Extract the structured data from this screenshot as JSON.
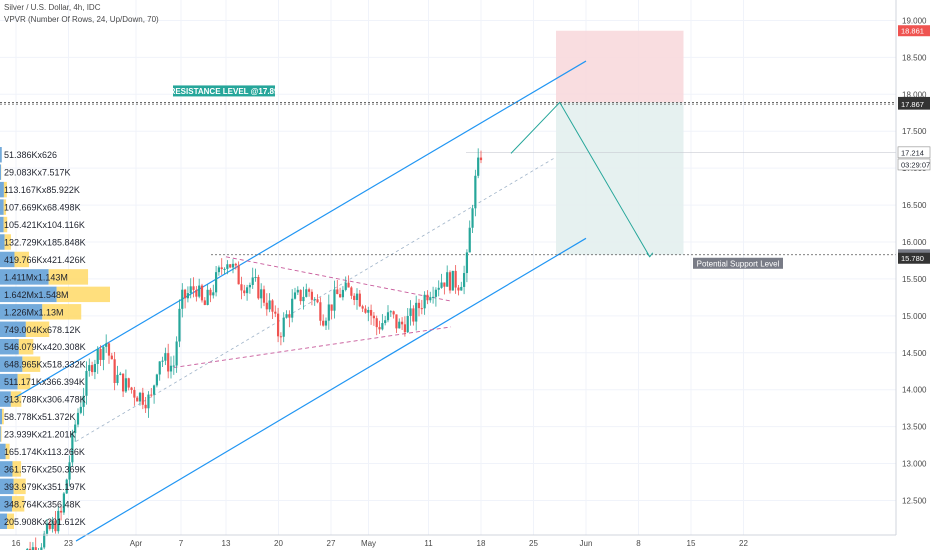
{
  "header": {
    "title": "Silver / U.S. Dollar, 4h, IDC",
    "indicator": "VPVR (Number Of Rows, 24, Up/Down, 70)"
  },
  "colors": {
    "up": "#26a69a",
    "down": "#ef5350",
    "channel": "#2196f3",
    "vp_up": "#5b9bd5",
    "vp_down": "#ffd966",
    "vp_bg_up": "#dbe9f7",
    "vp_bg_down": "#fdf0c4",
    "stop_zone": "#f8d7da",
    "target_zone": "#e3f0ee",
    "triangle": "#c85a9b",
    "projection": "#26a69a",
    "current_price_bg": "#ffffff",
    "red_label": "#ef5350",
    "dark_label": "#333333",
    "grey_label": "#787b86",
    "resistance_label": "#26a69a"
  },
  "chart_data": {
    "type": "candlestick",
    "title": "Silver / U.S. Dollar, 4h, IDC",
    "y_axis": {
      "ylim": [
        12.1,
        19.25
      ],
      "ticks": [
        12.5,
        13.0,
        13.5,
        14.0,
        14.5,
        15.0,
        15.5,
        16.0,
        16.5,
        17.0,
        17.5,
        18.0,
        18.5,
        19.0
      ],
      "tick_labels": [
        "12.500",
        "13.000",
        "13.500",
        "14.000",
        "14.500",
        "15.000",
        "15.500",
        "16.000",
        "16.500",
        "17.000",
        "17.500",
        "18.000",
        "18.500",
        "19.000"
      ],
      "price_labels": [
        {
          "value": 18.861,
          "text": "18.861",
          "style": "red"
        },
        {
          "value": 17.89,
          "text": "17.890",
          "style": "dark"
        },
        {
          "value": 17.867,
          "text": "17.867",
          "style": "dark"
        },
        {
          "value": 17.214,
          "text": "17.214",
          "style": "white"
        },
        {
          "value": 17.05,
          "text": "03:29:07",
          "style": "white"
        },
        {
          "value": 15.827,
          "text": "15.827",
          "style": "grey"
        },
        {
          "value": 15.78,
          "text": "15.780",
          "style": "dark"
        }
      ]
    },
    "x_axis": {
      "labels": [
        {
          "day": 0,
          "text": "16"
        },
        {
          "day": 7,
          "text": "23"
        },
        {
          "day": 16,
          "text": "Apr"
        },
        {
          "day": 22,
          "text": "7"
        },
        {
          "day": 28,
          "text": "13"
        },
        {
          "day": 35,
          "text": "20"
        },
        {
          "day": 42,
          "text": "27"
        },
        {
          "day": 47,
          "text": "May"
        },
        {
          "day": 55,
          "text": "11"
        },
        {
          "day": 62,
          "text": "18"
        },
        {
          "day": 69,
          "text": "25"
        },
        {
          "day": 76,
          "text": "Jun"
        },
        {
          "day": 83,
          "text": "8"
        },
        {
          "day": 90,
          "text": "15"
        },
        {
          "day": 97,
          "text": "22"
        }
      ]
    },
    "price_path": [
      {
        "day": 0,
        "price": 11.7
      },
      {
        "day": 3,
        "price": 11.9
      },
      {
        "day": 6,
        "price": 12.3
      },
      {
        "day": 8,
        "price": 13.6
      },
      {
        "day": 10,
        "price": 14.35
      },
      {
        "day": 12,
        "price": 14.65
      },
      {
        "day": 13,
        "price": 14.2
      },
      {
        "day": 16,
        "price": 13.95
      },
      {
        "day": 18,
        "price": 13.85
      },
      {
        "day": 19,
        "price": 14.45
      },
      {
        "day": 21,
        "price": 14.3
      },
      {
        "day": 22,
        "price": 15.2
      },
      {
        "day": 24,
        "price": 15.4
      },
      {
        "day": 25,
        "price": 15.1
      },
      {
        "day": 27,
        "price": 15.55
      },
      {
        "day": 28,
        "price": 15.8
      },
      {
        "day": 30,
        "price": 15.45
      },
      {
        "day": 32,
        "price": 15.4
      },
      {
        "day": 34,
        "price": 15.1
      },
      {
        "day": 35,
        "price": 14.75
      },
      {
        "day": 37,
        "price": 15.2
      },
      {
        "day": 39,
        "price": 15.35
      },
      {
        "day": 41,
        "price": 15.0
      },
      {
        "day": 43,
        "price": 15.3
      },
      {
        "day": 45,
        "price": 15.35
      },
      {
        "day": 47,
        "price": 15.1
      },
      {
        "day": 48,
        "price": 14.85
      },
      {
        "day": 50,
        "price": 15.0
      },
      {
        "day": 51,
        "price": 14.85
      },
      {
        "day": 53,
        "price": 15.0
      },
      {
        "day": 55,
        "price": 15.35
      },
      {
        "day": 57,
        "price": 15.5
      },
      {
        "day": 59,
        "price": 15.45
      },
      {
        "day": 60,
        "price": 15.6
      },
      {
        "day": 61,
        "price": 16.7
      },
      {
        "day": 62,
        "price": 17.2
      }
    ],
    "channel": {
      "upper": [
        {
          "day": 0,
          "price": 13.9
        },
        {
          "day": 76,
          "price": 18.45
        }
      ],
      "lower": [
        {
          "day": 8,
          "price": 11.95
        },
        {
          "day": 76,
          "price": 16.05
        }
      ],
      "mid": [
        {
          "day": 8,
          "price": 13.3
        },
        {
          "day": 72,
          "price": 17.15
        }
      ]
    },
    "triangle": {
      "upper": [
        {
          "day": 28,
          "price": 15.8
        },
        {
          "day": 58,
          "price": 15.2
        }
      ],
      "lower": [
        {
          "day": 21,
          "price": 14.3
        },
        {
          "day": 58,
          "price": 14.85
        }
      ]
    },
    "resistance": {
      "value": 17.89,
      "label": "RESISTANCE LEVEL @17.89"
    },
    "support": {
      "value": 15.827,
      "label": "Potential Support Level"
    },
    "support_dotted_from_day": 26,
    "position": {
      "entry": 17.89,
      "stop": 18.861,
      "target": 15.827,
      "start_day": 72,
      "end_day": 89
    },
    "projection": [
      {
        "day": 66,
        "price": 17.2
      },
      {
        "day": 72.5,
        "price": 17.89
      },
      {
        "day": 84.5,
        "price": 15.8
      }
    ],
    "volume_profile": [
      {
        "label": "51.386Kx626",
        "up": 51.386,
        "down": 0.626
      },
      {
        "label": "29.083Kx7.517K",
        "up": 29.083,
        "down": 7.517
      },
      {
        "label": "113.167Kx85.922K",
        "up": 113.167,
        "down": 85.922
      },
      {
        "label": "107.669Kx68.498K",
        "up": 107.669,
        "down": 68.498
      },
      {
        "label": "105.421Kx104.116K",
        "up": 105.421,
        "down": 104.116
      },
      {
        "label": "132.729Kx185.848K",
        "up": 132.729,
        "down": 185.848
      },
      {
        "label": "419.766Kx421.426K",
        "up": 419.766,
        "down": 421.426
      },
      {
        "label": "1.411Mx1.143M",
        "up": 1411,
        "down": 1143
      },
      {
        "label": "1.642Mx1.548M",
        "up": 1642,
        "down": 1548
      },
      {
        "label": "1.226Mx1.13M",
        "up": 1226,
        "down": 1130
      },
      {
        "label": "749.004Kx678.12K",
        "up": 749.004,
        "down": 678.12
      },
      {
        "label": "546.079Kx420.308K",
        "up": 546.079,
        "down": 420.308
      },
      {
        "label": "648.965Kx518.332K",
        "up": 648.965,
        "down": 518.332
      },
      {
        "label": "511.171Kx366.394K",
        "up": 511.171,
        "down": 366.394
      },
      {
        "label": "313.788Kx306.478K",
        "up": 313.788,
        "down": 306.478
      },
      {
        "label": "58.778Kx51.372K",
        "up": 58.778,
        "down": 51.372
      },
      {
        "label": "23.939Kx21.201K",
        "up": 23.939,
        "down": 21.201
      },
      {
        "label": "165.174Kx113.266K",
        "up": 165.174,
        "down": 113.266
      },
      {
        "label": "361.576Kx250.369K",
        "up": 361.576,
        "down": 250.369
      },
      {
        "label": "393.979Kx351.197K",
        "up": 393.979,
        "down": 351.197
      },
      {
        "label": "348.764Kx356.48K",
        "up": 348.764,
        "down": 356.48
      },
      {
        "label": "205.908Kx201.612K",
        "up": 205.908,
        "down": 201.612
      }
    ]
  }
}
